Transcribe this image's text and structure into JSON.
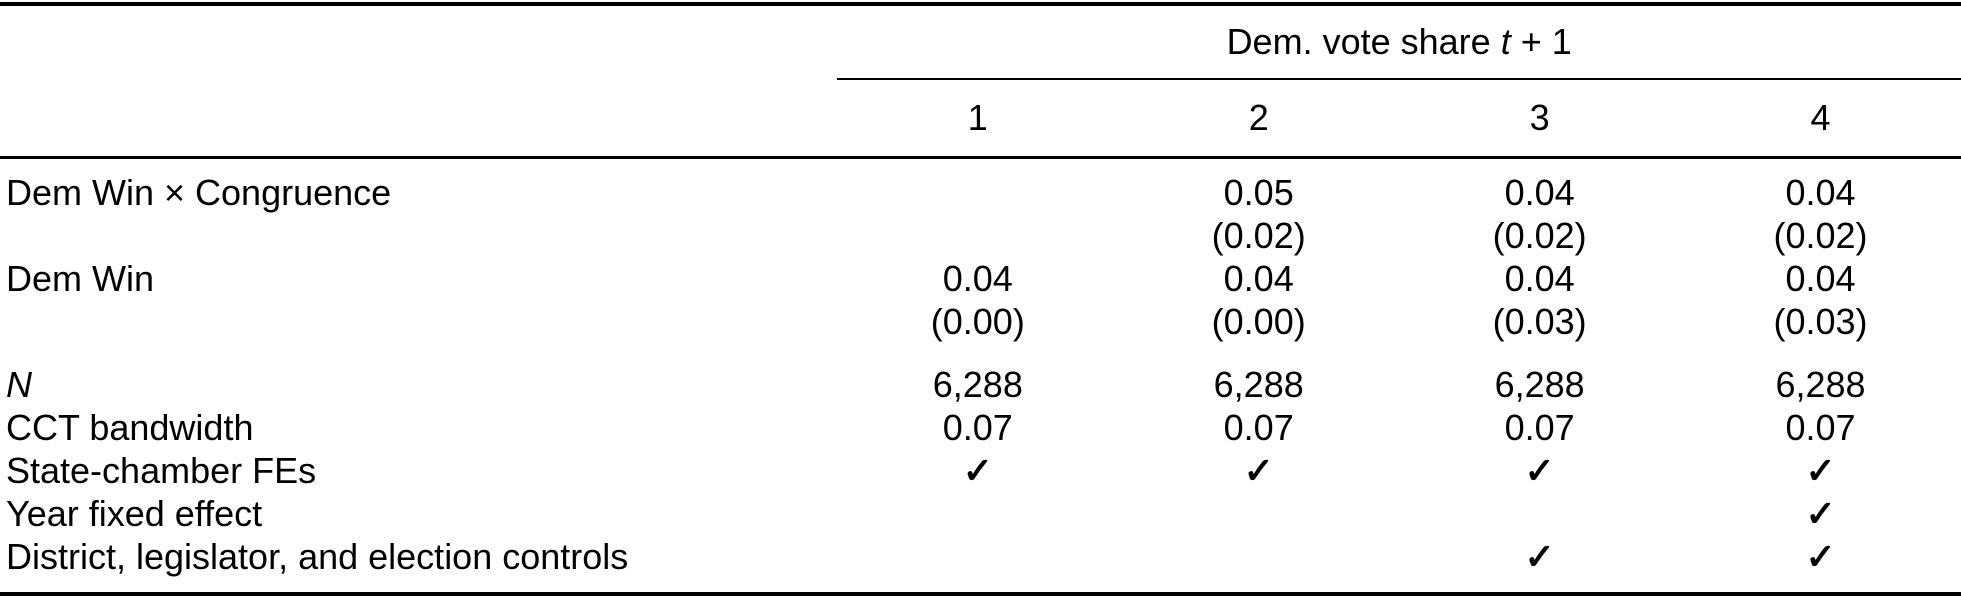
{
  "table": {
    "spanner": {
      "prefix": "Dem. vote share ",
      "t": "t",
      "suffix": " + 1"
    },
    "column_headers": [
      "1",
      "2",
      "3",
      "4"
    ],
    "rows": [
      {
        "label": "Dem Win × Congruence",
        "cells": [
          "",
          "0.05",
          "0.04",
          "0.04"
        ]
      },
      {
        "label": "",
        "cells": [
          "",
          "(0.02)",
          "(0.02)",
          "(0.02)"
        ]
      },
      {
        "label": "Dem Win",
        "cells": [
          "0.04",
          "0.04",
          "0.04",
          "0.04"
        ]
      },
      {
        "label": "",
        "cells": [
          "(0.00)",
          "(0.00)",
          "(0.03)",
          "(0.03)"
        ]
      },
      {
        "label": "N",
        "cells": [
          "6,288",
          "6,288",
          "6,288",
          "6,288"
        ]
      },
      {
        "label": "CCT bandwidth",
        "cells": [
          "0.07",
          "0.07",
          "0.07",
          "0.07"
        ]
      },
      {
        "label": "State-chamber FEs",
        "cells": [
          "✓",
          "✓",
          "✓",
          "✓"
        ]
      },
      {
        "label": "Year fixed effect",
        "cells": [
          "",
          "",
          "",
          "✓"
        ]
      },
      {
        "label": "District, legislator, and election controls",
        "cells": [
          "",
          "",
          "✓",
          "✓"
        ]
      }
    ]
  }
}
